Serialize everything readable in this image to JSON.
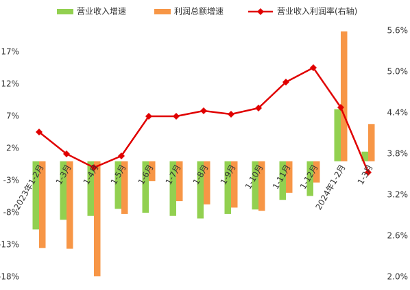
{
  "chart_data": {
    "type": "bar_line",
    "categories": [
      "2023年1-2月",
      "1-3月",
      "1-4月",
      "1-5月",
      "1-6月",
      "1-7月",
      "1-8月",
      "1-9月",
      "1-10月",
      "1-11月",
      "1-12月",
      "2024年1-2月",
      "1-3月"
    ],
    "series": [
      {
        "name": "营业收入增速",
        "color": "#92d050",
        "type": "bar",
        "values": [
          -10.6,
          -9.1,
          -8.5,
          -7.4,
          -8.0,
          -8.5,
          -8.9,
          -8.2,
          -7.5,
          -6.0,
          -5.4,
          8.1,
          1.5
        ]
      },
      {
        "name": "利润总额增速",
        "color": "#f79646",
        "type": "bar",
        "values": [
          -13.5,
          -13.6,
          -17.9,
          -8.2,
          -3.1,
          -6.2,
          -6.7,
          -7.2,
          -7.7,
          -4.9,
          -3.3,
          20.2,
          5.8
        ]
      },
      {
        "name": "营业收入利润率(右轴)",
        "color": "#e00000",
        "type": "line",
        "axis": "y2",
        "values": [
          4.12,
          3.8,
          3.6,
          3.77,
          4.35,
          4.35,
          4.43,
          4.38,
          4.47,
          4.85,
          5.06,
          4.48,
          3.53
        ]
      }
    ],
    "ylim": [
      -18,
      20.3
    ],
    "yticks": [
      {
        "value": 17,
        "label": "17%"
      },
      {
        "value": 12,
        "label": "12%"
      },
      {
        "value": 7,
        "label": "7%"
      },
      {
        "value": 2,
        "label": "2%"
      },
      {
        "value": -3,
        "label": "-3%"
      },
      {
        "value": -8,
        "label": "-8%"
      },
      {
        "value": -13,
        "label": "-13%"
      },
      {
        "value": -18,
        "label": "-18%"
      }
    ],
    "y2lim": [
      2.0,
      5.6
    ],
    "y2ticks": [
      {
        "value": 5.6,
        "label": "5.6%"
      },
      {
        "value": 5.0,
        "label": "5.0%"
      },
      {
        "value": 4.4,
        "label": "4.4%"
      },
      {
        "value": 3.8,
        "label": "3.8%"
      },
      {
        "value": 3.2,
        "label": "3.2%"
      },
      {
        "value": 2.6,
        "label": "2.6%"
      },
      {
        "value": 2.0,
        "label": "2.0%"
      }
    ],
    "legend": "top"
  }
}
